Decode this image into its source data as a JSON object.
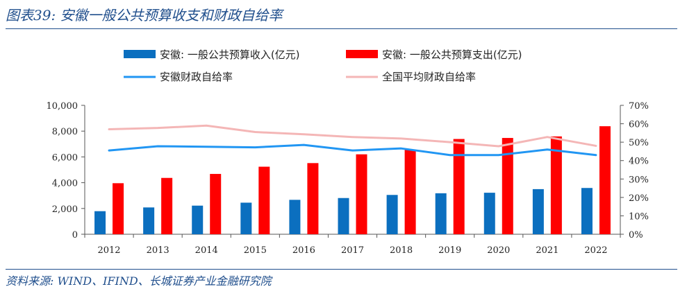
{
  "title": "图表39:  安徽一般公共预算收支和财政自给率",
  "source": "资料来源: WIND、IFIND、长城证券产业金融研究院",
  "colors": {
    "revenue": "#0b6fbf",
    "expenditure": "#ff0000",
    "ratio_anhui": "#2196f3",
    "ratio_national": "#f4b6b6",
    "heading": "#1f4e8c"
  },
  "chart_data": {
    "type": "bar",
    "categories": [
      "2012",
      "2013",
      "2014",
      "2015",
      "2016",
      "2017",
      "2018",
      "2019",
      "2020",
      "2021",
      "2022"
    ],
    "series": [
      {
        "name": "安徽: 一般公共预算收入(亿元)",
        "type": "bar",
        "axis": "left",
        "values": [
          1790,
          2080,
          2220,
          2450,
          2670,
          2810,
          3050,
          3180,
          3220,
          3500,
          3590
        ]
      },
      {
        "name": "安徽: 一般公共预算支出(亿元)",
        "type": "bar",
        "axis": "left",
        "values": [
          3960,
          4370,
          4680,
          5240,
          5520,
          6200,
          6570,
          7390,
          7470,
          7590,
          8380
        ]
      },
      {
        "name": "安徽财政自给率",
        "type": "line",
        "axis": "right",
        "values": [
          0.455,
          0.478,
          0.475,
          0.472,
          0.485,
          0.455,
          0.466,
          0.43,
          0.43,
          0.46,
          0.43
        ]
      },
      {
        "name": "全国平均财政自给率",
        "type": "line",
        "axis": "right",
        "values": [
          0.57,
          0.577,
          0.59,
          0.555,
          0.543,
          0.528,
          0.52,
          0.5,
          0.478,
          0.528,
          0.48
        ]
      }
    ],
    "y_left": {
      "ylim": [
        0,
        10000
      ],
      "ticks": [
        "0",
        "2,000",
        "4,000",
        "6,000",
        "8,000",
        "10,000"
      ]
    },
    "y_right": {
      "ylim": [
        0,
        0.7
      ],
      "ticks": [
        "0%",
        "10%",
        "20%",
        "30%",
        "40%",
        "50%",
        "60%",
        "70%"
      ]
    },
    "legend_position": "top",
    "grid": false
  }
}
